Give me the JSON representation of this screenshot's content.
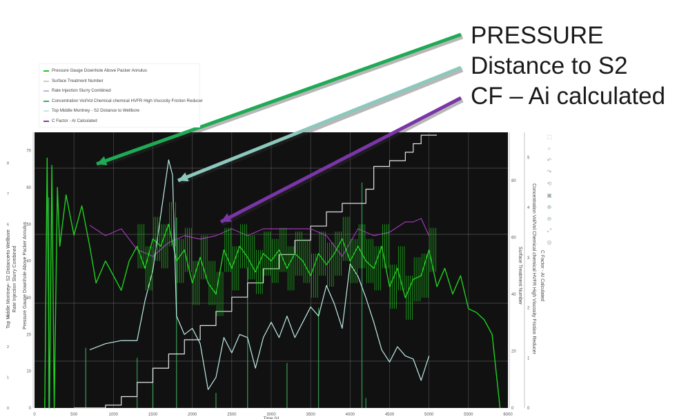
{
  "legend": {
    "items": [
      {
        "label": "Pressure Gauge Downhole Above Packer Annulus",
        "color": "#22c322"
      },
      {
        "label": "Surface Treatment Number",
        "color": "#cccccc"
      },
      {
        "label": "Rate Injection Slurry Combined",
        "color": "#b9b4e0"
      },
      {
        "label": "Concentration Vol/Vol Chemical chemical HVFR High Viscosity Friction Reducer",
        "color": "#3aaa5a"
      },
      {
        "label": "Top Middle Montney - S2 Distance to Wellbore",
        "color": "#b8ece6"
      },
      {
        "label": "C Factor - AI Calculated",
        "color": "#9030b0"
      }
    ]
  },
  "callouts": {
    "pressure": "PRESSURE",
    "distance": "Distance to S2",
    "cf": "CF – Ai calculated"
  },
  "arrow_colors": {
    "pressure": "#1faa55",
    "distance": "#8cc8bc",
    "cf": "#7a35a8"
  },
  "toolbar": {
    "icons": [
      "zoom-box-icon",
      "zoom-to-selection-icon",
      "undo-icon",
      "redo-icon",
      "reset-icon",
      "save-icon",
      "zoom-in-icon",
      "zoom-out-icon",
      "autoscale-icon",
      "hover-icon"
    ]
  },
  "chart_data": {
    "type": "line",
    "background": "#111111",
    "grid": true,
    "x": {
      "label": "Time [s]",
      "range": [
        0,
        6000
      ],
      "ticks": [
        0,
        500,
        1000,
        1500,
        2000,
        2500,
        3000,
        3500,
        4000,
        4500,
        5000,
        5500,
        6000
      ]
    },
    "y_left_main": {
      "label": "Pressure Gauge Downhole Above Packer Annulus",
      "range": [
        0,
        75
      ],
      "ticks": [
        0,
        10,
        20,
        30,
        40,
        50,
        60,
        70
      ]
    },
    "y_left_outer": {
      "labels": [
        "Top Middle Montney - S2 Distance to Wellbore",
        "Rate Injection Slurry Combined"
      ],
      "range": [
        0,
        9
      ],
      "ticks": [
        0,
        1,
        2,
        3,
        4,
        5,
        6,
        7,
        8
      ]
    },
    "y_right_1": {
      "label": "Surface Treatment Number",
      "range": [
        0,
        97
      ],
      "ticks": [
        0,
        20,
        40,
        60,
        80
      ]
    },
    "y_right_2": {
      "label": "Concentration Vol/Vol Chemical chemical HVFR High Viscosity Friction Reducer",
      "range": [
        0,
        5.5
      ],
      "ticks": [
        0,
        1,
        2,
        3,
        4,
        5
      ]
    },
    "y_right_3": {
      "label": "C Factor - AI Calculated",
      "range": [
        0,
        0.8
      ]
    },
    "series": [
      {
        "name": "Pressure Gauge Downhole Above Packer Annulus",
        "color": "#1fd21f",
        "axis": "y_left_main",
        "x": [
          130,
          160,
          190,
          220,
          250,
          290,
          320,
          400,
          500,
          600,
          700,
          780,
          900,
          1000,
          1100,
          1200,
          1300,
          1400,
          1500,
          1600,
          1700,
          1800,
          1900,
          2000,
          2100,
          2200,
          2300,
          2400,
          2500,
          2600,
          2700,
          2800,
          2900,
          3000,
          3100,
          3200,
          3300,
          3400,
          3500,
          3600,
          3700,
          3800,
          3900,
          4000,
          4100,
          4200,
          4300,
          4400,
          4500,
          4600,
          4700,
          4800,
          4900,
          5000,
          5100,
          5200,
          5300,
          5400,
          5500,
          5600,
          5700,
          5800,
          5850,
          5900
        ],
        "y": [
          0,
          68,
          0,
          66,
          0,
          60,
          44,
          58,
          47,
          55,
          44,
          34,
          40,
          36,
          32,
          40,
          44,
          38,
          46,
          44,
          50,
          40,
          43,
          34,
          41,
          34,
          31,
          43,
          38,
          44,
          41,
          37,
          42,
          40,
          43,
          38,
          42,
          40,
          36,
          42,
          39,
          42,
          46,
          40,
          44,
          40,
          38,
          44,
          33,
          38,
          30,
          35,
          36,
          43,
          33,
          38,
          31,
          36,
          27,
          26,
          24,
          20,
          10,
          0
        ]
      },
      {
        "name": "Surface Treatment Number",
        "color": "#e6e6e6",
        "axis": "y_right_1",
        "x": [
          500,
          900,
          1100,
          1300,
          1500,
          1700,
          1900,
          2100,
          2300,
          2500,
          2700,
          2900,
          3100,
          3300,
          3500,
          3700,
          3900,
          4000,
          4200,
          4300,
          4500,
          4700,
          4800,
          4900,
          5000,
          5100
        ],
        "y": [
          0,
          1,
          4,
          9,
          14,
          19,
          24,
          29,
          34,
          39,
          44,
          49,
          54,
          59,
          64,
          69,
          72,
          72,
          77,
          85,
          87,
          90,
          93,
          96,
          96,
          96
        ]
      },
      {
        "name": "Top Middle Montney - S2 Distance to Wellbore",
        "color": "#bfeee8",
        "axis": "y_left_outer",
        "x": [
          700,
          900,
          1100,
          1200,
          1300,
          1400,
          1500,
          1600,
          1700,
          1750,
          1800,
          1900,
          2000,
          2100,
          2200,
          2300,
          2400,
          2500,
          2600,
          2700,
          2800,
          2900,
          3000,
          3100,
          3200,
          3300,
          3400,
          3500,
          3600,
          3700,
          3800,
          3900,
          4000,
          4100,
          4200,
          4300,
          4400,
          4500,
          4600,
          4700,
          4800,
          4900,
          5000
        ],
        "y": [
          1.9,
          2.1,
          2.2,
          2.2,
          2.2,
          3.5,
          4.5,
          6.3,
          8.1,
          7.6,
          3.0,
          2.4,
          2.6,
          2.1,
          0.6,
          1.0,
          2.3,
          1.8,
          2.4,
          2.3,
          1.3,
          2.3,
          2.8,
          2.3,
          3.0,
          2.3,
          2.8,
          3.3,
          3.0,
          4.0,
          3.4,
          2.6,
          4.7,
          4.3,
          3.6,
          2.8,
          1.9,
          1.5,
          2.0,
          1.7,
          1.6,
          0.9,
          1.7
        ]
      },
      {
        "name": "C Factor - AI Calculated",
        "color": "#a038b8",
        "axis": "y_right_3",
        "x": [
          700,
          900,
          1100,
          1300,
          1500,
          1700,
          1900,
          2100,
          2300,
          2500,
          2700,
          2900,
          3100,
          3300,
          3500,
          3700,
          3900,
          4100,
          4300,
          4500,
          4700,
          4800,
          4900,
          5000
        ],
        "y": [
          0.53,
          0.5,
          0.52,
          0.46,
          0.44,
          0.48,
          0.5,
          0.49,
          0.5,
          0.52,
          0.5,
          0.52,
          0.52,
          0.52,
          0.52,
          0.5,
          0.44,
          0.52,
          0.5,
          0.51,
          0.54,
          0.54,
          0.55,
          0.5
        ]
      },
      {
        "name": "Concentration Vol/Vol Chemical chemical HVFR High Viscosity Friction Reducer",
        "color": "#3aaa5a",
        "axis": "y_right_2",
        "x": [
          130,
          180,
          650,
          1300,
          1500,
          1800,
          2300,
          2700,
          3200,
          3600,
          4150,
          4200
        ],
        "y": [
          0.2,
          4.2,
          1.2,
          1.0,
          0.8,
          3.8,
          0.3,
          2.8,
          0.9,
          2.0,
          4.5,
          0.2
        ]
      }
    ]
  }
}
